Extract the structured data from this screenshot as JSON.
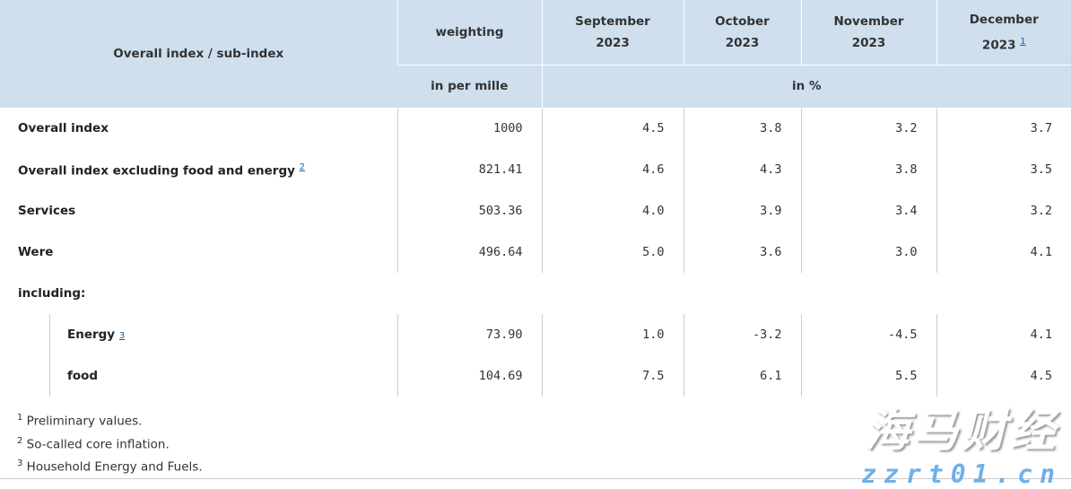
{
  "header": {
    "col0": "Overall index / sub-index",
    "weighting": "weighting",
    "weighting_unit": "in per mille",
    "months": [
      {
        "m": "September",
        "y": "2023"
      },
      {
        "m": "October",
        "y": "2023"
      },
      {
        "m": "November",
        "y": "2023"
      },
      {
        "m": "December",
        "y": "2023",
        "note": "1"
      }
    ],
    "months_unit": "in %"
  },
  "rows": [
    {
      "label": "Overall index",
      "w": "1000",
      "v": [
        "4.5",
        "3.8",
        "3.2",
        "3.7"
      ]
    },
    {
      "label": "Overall index excluding food and energy",
      "note": "2",
      "w": "821.41",
      "v": [
        "4.6",
        "4.3",
        "3.8",
        "3.5"
      ]
    },
    {
      "label": "Services",
      "w": "503.36",
      "v": [
        "4.0",
        "3.9",
        "3.4",
        "3.2"
      ]
    },
    {
      "label": "Were",
      "w": "496.64",
      "v": [
        "5.0",
        "3.6",
        "3.0",
        "4.1"
      ]
    },
    {
      "label": "including:"
    },
    {
      "label": "Energy",
      "note": "3",
      "w": "73.90",
      "v": [
        "1.0",
        "-3.2",
        "-4.5",
        "4.1"
      ]
    },
    {
      "label": "food",
      "w": "104.69",
      "v": [
        "7.5",
        "6.1",
        "5.5",
        "4.5"
      ]
    }
  ],
  "footnotes": [
    {
      "n": "1",
      "t": "Preliminary values."
    },
    {
      "n": "2",
      "t": "So-called core inflation."
    },
    {
      "n": "3",
      "t": "Household Energy and Fuels."
    }
  ],
  "watermark": {
    "cn": "海马财经",
    "url": "zzrt01.cn"
  }
}
